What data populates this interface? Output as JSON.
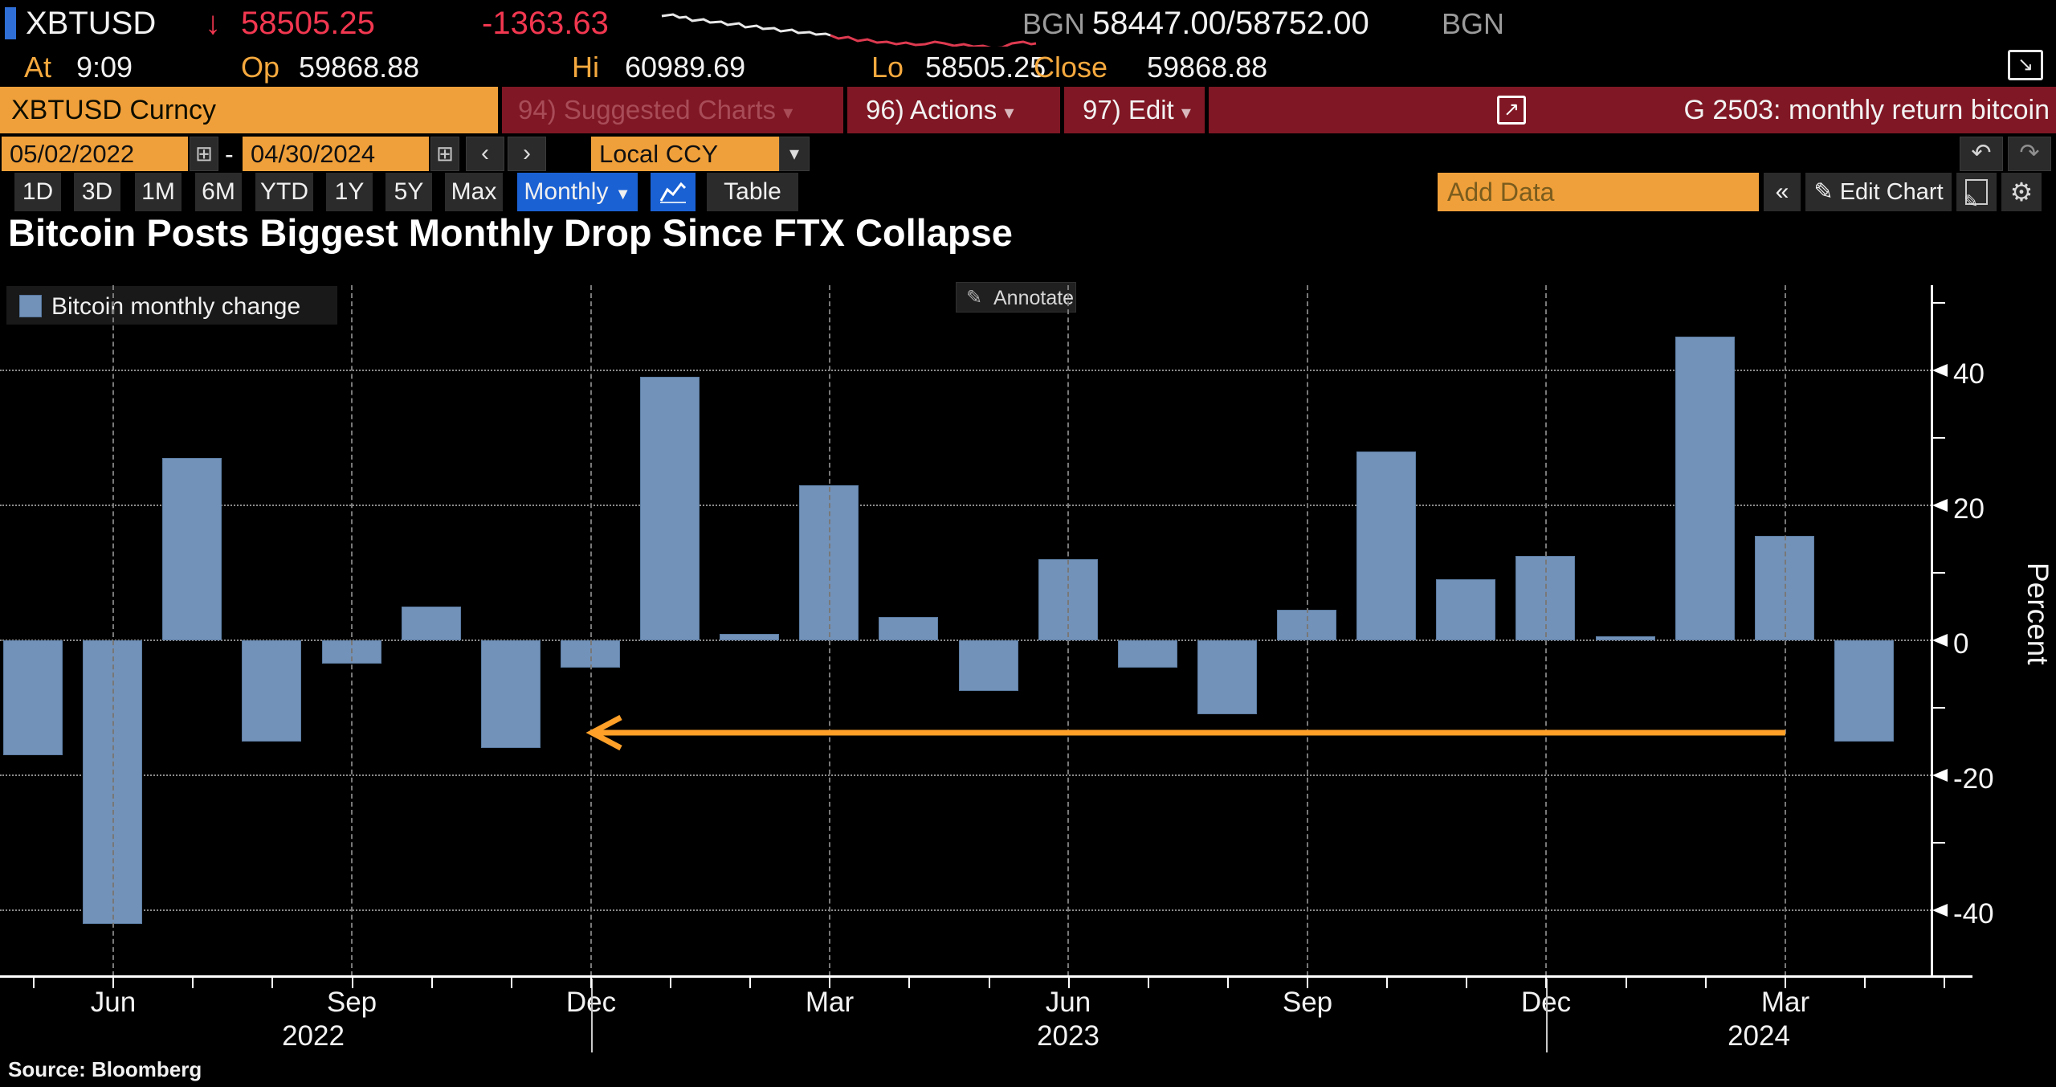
{
  "header": {
    "ticker": "XBTUSD",
    "down_arrow": "↓",
    "last_price": "58505.25",
    "change": "-1363.63",
    "source_left": "BGN",
    "bid_ask": "58447.00/58752.00",
    "source_right": "BGN",
    "at_label": "At",
    "at_value": "9:09",
    "open_label": "Op",
    "open_value": "59868.88",
    "high_label": "Hi",
    "high_value": "60989.69",
    "low_label": "Lo",
    "low_value": "58505.25",
    "close_label": "Close",
    "close_value": "59868.88"
  },
  "command_bar": {
    "security_input": "XBTUSD Curncy",
    "suggested_charts": "94) Suggested Charts",
    "actions": "96) Actions",
    "edit": "97) Edit",
    "dropdown_arrow": "▾",
    "external_link_icon": "↗",
    "chart_ref": "G 2503: monthly return bitcoin"
  },
  "date_bar": {
    "start_date": "05/02/2022",
    "range_separator": "-",
    "end_date": "04/30/2024",
    "calendar_icon": "⊞",
    "prev": "‹",
    "next": "›",
    "currency": "Local CCY",
    "dropdown_arrow": "▾",
    "undo": "↶",
    "redo": "↷"
  },
  "toolbar": {
    "periods": [
      "1D",
      "3D",
      "1M",
      "6M",
      "YTD",
      "1Y",
      "5Y",
      "Max"
    ],
    "frequency": "Monthly",
    "frequency_arrow": "▼",
    "table": "Table",
    "add_data_placeholder": "Add Data",
    "collapse": "«",
    "pencil": "✎",
    "edit_chart": "Edit Chart",
    "gear": "⚙"
  },
  "chart_header": {
    "title": "Bitcoin Posts Biggest Monthly Drop Since FTX Collapse",
    "pencil": "✎",
    "annotate": "Annotate"
  },
  "chart_data": {
    "type": "bar",
    "title": "Bitcoin Posts Biggest Monthly Drop Since FTX Collapse",
    "series_name": "Bitcoin monthly change",
    "x": [
      "May 2022",
      "Jun 2022",
      "Jul 2022",
      "Aug 2022",
      "Sep 2022",
      "Oct 2022",
      "Nov 2022",
      "Dec 2022",
      "Jan 2023",
      "Feb 2023",
      "Mar 2023",
      "Apr 2023",
      "May 2023",
      "Jun 2023",
      "Jul 2023",
      "Aug 2023",
      "Sep 2023",
      "Oct 2023",
      "Nov 2023",
      "Dec 2023",
      "Jan 2024",
      "Feb 2024",
      "Mar 2024",
      "Apr 2024"
    ],
    "values": [
      -17,
      -42,
      27,
      -15,
      -3.5,
      5,
      -16,
      -4,
      39,
      1,
      23,
      3.5,
      -7.5,
      12,
      -4,
      -11,
      4.5,
      28,
      9,
      12.5,
      0.6,
      45,
      15.5,
      -15
    ],
    "ylabel": "Percent",
    "yticks": [
      40,
      20,
      0,
      -20,
      -40
    ],
    "ylim": [
      -50,
      52
    ],
    "xtick_labels": [
      "Jun",
      "Sep",
      "Dec",
      "Mar",
      "Jun",
      "Sep",
      "Dec",
      "Mar"
    ],
    "year_labels": [
      "2022",
      "2023",
      "2024"
    ],
    "grid": "dotted",
    "legend_position": "top-left",
    "bar_color": "#7392B9",
    "annotation_arrow": {
      "from": "Apr 2024",
      "to": "Dec 2022",
      "y": -14,
      "color": "#FFA028",
      "direction": "left"
    }
  },
  "footer": {
    "source": "Source: Bloomberg"
  },
  "colors": {
    "background": "#000000",
    "panel_red": "#801724",
    "panel_red_muted_text": "#A84C58",
    "accent_orange": "#F0A03A",
    "placeholder_brown": "#7A5C1E",
    "accent_blue": "#1A61D4",
    "tag_blue": "#2F6FD6",
    "price_red": "#F23750",
    "label_orange": "#F5A93E",
    "gray_text": "#9B9B9B",
    "button_gray": "#2B2B2B",
    "grid_gray": "#8C8C8C",
    "bar_blue": "#7392B9",
    "arrow_orange": "#FFA028",
    "spark_white": "#E9E9E9",
    "spark_red": "#DE3A50"
  }
}
